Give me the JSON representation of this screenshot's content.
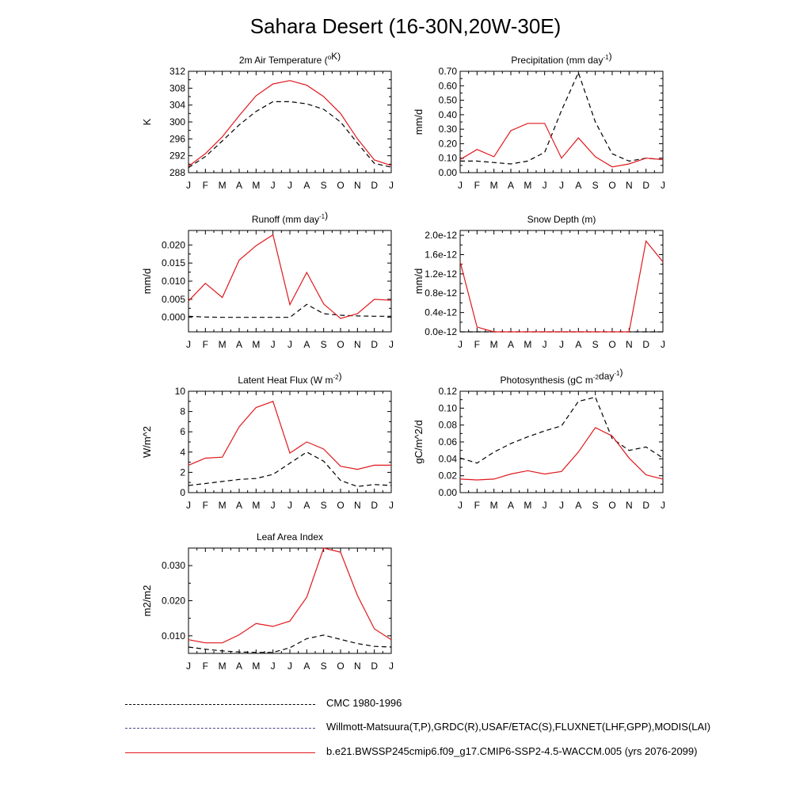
{
  "title": "Sahara Desert (16-30N,20W-30E)",
  "colors": {
    "model": "#e0181d",
    "obs": "#000000",
    "obs2": "#4a4a8a"
  },
  "legend": [
    {
      "label": "CMC 1980-1996",
      "style": "dashed"
    },
    {
      "label": "Willmott-Matsuura(T,P),GRDC(R),USAF/ETAC(S),FLUXNET(LHF,GPP),MODIS(LAI)",
      "style": "dashed"
    },
    {
      "label": "b.e21.BWSSP245cmip6.f09_g17.CMIP6-SSP2-4.5-WACCM.005 (yrs 2076-2099)",
      "style": "solid"
    }
  ],
  "chart_data": [
    {
      "type": "line",
      "title": "2m Air Temperature (",
      "title_sup": "o",
      "title_after": "K)",
      "ylabel": "K",
      "categories": [
        "J",
        "F",
        "M",
        "A",
        "M",
        "J",
        "J",
        "A",
        "S",
        "O",
        "N",
        "D",
        "J"
      ],
      "ylim": [
        288,
        312
      ],
      "yticks": [
        288,
        292,
        296,
        300,
        304,
        308,
        312
      ],
      "yticklabels": [
        "288",
        "292",
        "296",
        "300",
        "304",
        "308",
        "312"
      ],
      "series": [
        {
          "name": "model",
          "style": "solid",
          "values": [
            289.5,
            292.5,
            296.5,
            301.5,
            306.2,
            309.0,
            309.8,
            308.7,
            306.0,
            302.0,
            296.0,
            291.0,
            289.7
          ]
        },
        {
          "name": "obs",
          "style": "dashed",
          "values": [
            289.2,
            291.8,
            295.5,
            299.3,
            302.5,
            304.8,
            304.8,
            304.3,
            303.0,
            300.0,
            295.0,
            290.2,
            289.3
          ]
        }
      ]
    },
    {
      "type": "line",
      "title": "Precipitation (mm day",
      "title_sup": "-1",
      "title_after": ")",
      "ylabel": "mm/d",
      "categories": [
        "J",
        "F",
        "M",
        "A",
        "M",
        "J",
        "J",
        "A",
        "S",
        "O",
        "N",
        "D",
        "J"
      ],
      "ylim": [
        0,
        0.7
      ],
      "yticks": [
        0,
        0.1,
        0.2,
        0.3,
        0.4,
        0.5,
        0.6,
        0.7
      ],
      "yticklabels": [
        "0.00",
        "0.10",
        "0.20",
        "0.30",
        "0.40",
        "0.50",
        "0.60",
        "0.70"
      ],
      "series": [
        {
          "name": "model",
          "style": "solid",
          "values": [
            0.09,
            0.16,
            0.11,
            0.29,
            0.34,
            0.34,
            0.1,
            0.24,
            0.11,
            0.04,
            0.06,
            0.1,
            0.09
          ]
        },
        {
          "name": "obs",
          "style": "dashed",
          "values": [
            0.08,
            0.08,
            0.07,
            0.06,
            0.08,
            0.14,
            0.43,
            0.69,
            0.35,
            0.13,
            0.08,
            0.1,
            0.09
          ]
        }
      ]
    },
    {
      "type": "line",
      "title": "Runoff (mm day",
      "title_sup": "-1",
      "title_after": ")",
      "ylabel": "mm/d",
      "categories": [
        "J",
        "F",
        "M",
        "A",
        "M",
        "J",
        "J",
        "A",
        "S",
        "O",
        "N",
        "D",
        "J"
      ],
      "ylim": [
        -0.004,
        0.024
      ],
      "yticks": [
        0,
        0.005,
        0.01,
        0.015,
        0.02
      ],
      "yticklabels": [
        "0.000",
        "0.005",
        "0.010",
        "0.015",
        "0.020"
      ],
      "series": [
        {
          "name": "model",
          "style": "solid",
          "values": [
            0.0045,
            0.0094,
            0.0055,
            0.0158,
            0.0198,
            0.0228,
            0.0035,
            0.0124,
            0.0037,
            -0.0003,
            0.001,
            0.005,
            0.0047
          ]
        },
        {
          "name": "obs",
          "style": "dashed",
          "values": [
            0.0003,
            0.0001,
            0.0,
            0.0,
            0.0,
            0.0,
            0.0,
            0.0036,
            0.001,
            0.0006,
            0.0004,
            0.0003,
            0.0003
          ]
        }
      ]
    },
    {
      "type": "line",
      "title": "Snow Depth (m)",
      "title_sup": "",
      "title_after": "",
      "ylabel": "mm/d",
      "categories": [
        "J",
        "F",
        "M",
        "A",
        "M",
        "J",
        "J",
        "A",
        "S",
        "O",
        "N",
        "D",
        "J"
      ],
      "ylim": [
        0,
        2.1
      ],
      "yticks": [
        0,
        0.4,
        0.8,
        1.2,
        1.6,
        2.0
      ],
      "yticklabels": [
        "0.0e-12",
        "0.4e-12",
        "0.8e-12",
        "1.2e-12",
        "1.6e-12",
        "2.0e-12"
      ],
      "series": [
        {
          "name": "model",
          "style": "solid",
          "values": [
            1.45,
            0.1,
            0.0,
            0.0,
            0.0,
            0.0,
            0.0,
            0.0,
            0.0,
            0.0,
            0.0,
            1.88,
            1.45
          ]
        },
        {
          "name": "obs",
          "style": "dashed",
          "values": [
            0.0,
            0.0,
            0.0,
            0.0,
            0.0,
            0.0,
            0.0,
            0.0,
            0.0,
            0.0,
            0.0,
            0.0,
            0.0
          ]
        }
      ]
    },
    {
      "type": "line",
      "title": "Latent Heat Flux (W m",
      "title_sup": "-2",
      "title_after": ")",
      "ylabel": "W/m^2",
      "categories": [
        "J",
        "F",
        "M",
        "A",
        "M",
        "J",
        "J",
        "A",
        "S",
        "O",
        "N",
        "D",
        "J"
      ],
      "ylim": [
        0,
        10
      ],
      "yticks": [
        0,
        2,
        4,
        6,
        8,
        10
      ],
      "yticklabels": [
        "0",
        "2",
        "4",
        "6",
        "8",
        "10"
      ],
      "series": [
        {
          "name": "model",
          "style": "solid",
          "values": [
            2.7,
            3.4,
            3.5,
            6.5,
            8.4,
            9.0,
            3.9,
            5.0,
            4.3,
            2.6,
            2.3,
            2.7,
            2.7
          ]
        },
        {
          "name": "obs",
          "style": "dashed",
          "values": [
            0.7,
            0.9,
            1.1,
            1.3,
            1.4,
            1.8,
            2.9,
            4.0,
            3.1,
            1.2,
            0.6,
            0.8,
            0.7
          ]
        }
      ]
    },
    {
      "type": "line",
      "title": "Photosynthesis (gC m",
      "title_sup": "-2",
      "title_after": "day",
      "title_sup2": "-1",
      "title_after2": ")",
      "ylabel": "gC/m^2/d",
      "categories": [
        "J",
        "F",
        "M",
        "A",
        "M",
        "J",
        "J",
        "A",
        "S",
        "O",
        "N",
        "D",
        "J"
      ],
      "ylim": [
        0,
        0.12
      ],
      "yticks": [
        0,
        0.02,
        0.04,
        0.06,
        0.08,
        0.1,
        0.12
      ],
      "yticklabels": [
        "0.00",
        "0.02",
        "0.04",
        "0.06",
        "0.08",
        "0.10",
        "0.12"
      ],
      "series": [
        {
          "name": "model",
          "style": "solid",
          "values": [
            0.016,
            0.015,
            0.016,
            0.022,
            0.026,
            0.022,
            0.025,
            0.048,
            0.077,
            0.067,
            0.041,
            0.021,
            0.016
          ]
        },
        {
          "name": "obs",
          "style": "dashed",
          "values": [
            0.041,
            0.035,
            0.048,
            0.058,
            0.066,
            0.073,
            0.079,
            0.108,
            0.113,
            0.064,
            0.05,
            0.054,
            0.041
          ]
        }
      ]
    },
    {
      "type": "line",
      "title": "Leaf Area Index",
      "title_sup": "",
      "title_after": "",
      "ylabel": "m2/m2",
      "categories": [
        "J",
        "F",
        "M",
        "A",
        "M",
        "J",
        "J",
        "A",
        "S",
        "O",
        "N",
        "D",
        "J"
      ],
      "ylim": [
        0.005,
        0.035
      ],
      "yticks": [
        0.01,
        0.02,
        0.03
      ],
      "yticklabels": [
        "0.010",
        "0.020",
        "0.030"
      ],
      "series": [
        {
          "name": "model",
          "style": "solid",
          "values": [
            0.0089,
            0.008,
            0.008,
            0.0103,
            0.0135,
            0.0127,
            0.0142,
            0.021,
            0.035,
            0.0338,
            0.0215,
            0.012,
            0.0089
          ]
        },
        {
          "name": "obs",
          "style": "dashed",
          "values": [
            0.0068,
            0.0062,
            0.0057,
            0.0054,
            0.0053,
            0.0053,
            0.0066,
            0.0092,
            0.0102,
            0.009,
            0.0078,
            0.007,
            0.0068
          ]
        }
      ]
    }
  ]
}
